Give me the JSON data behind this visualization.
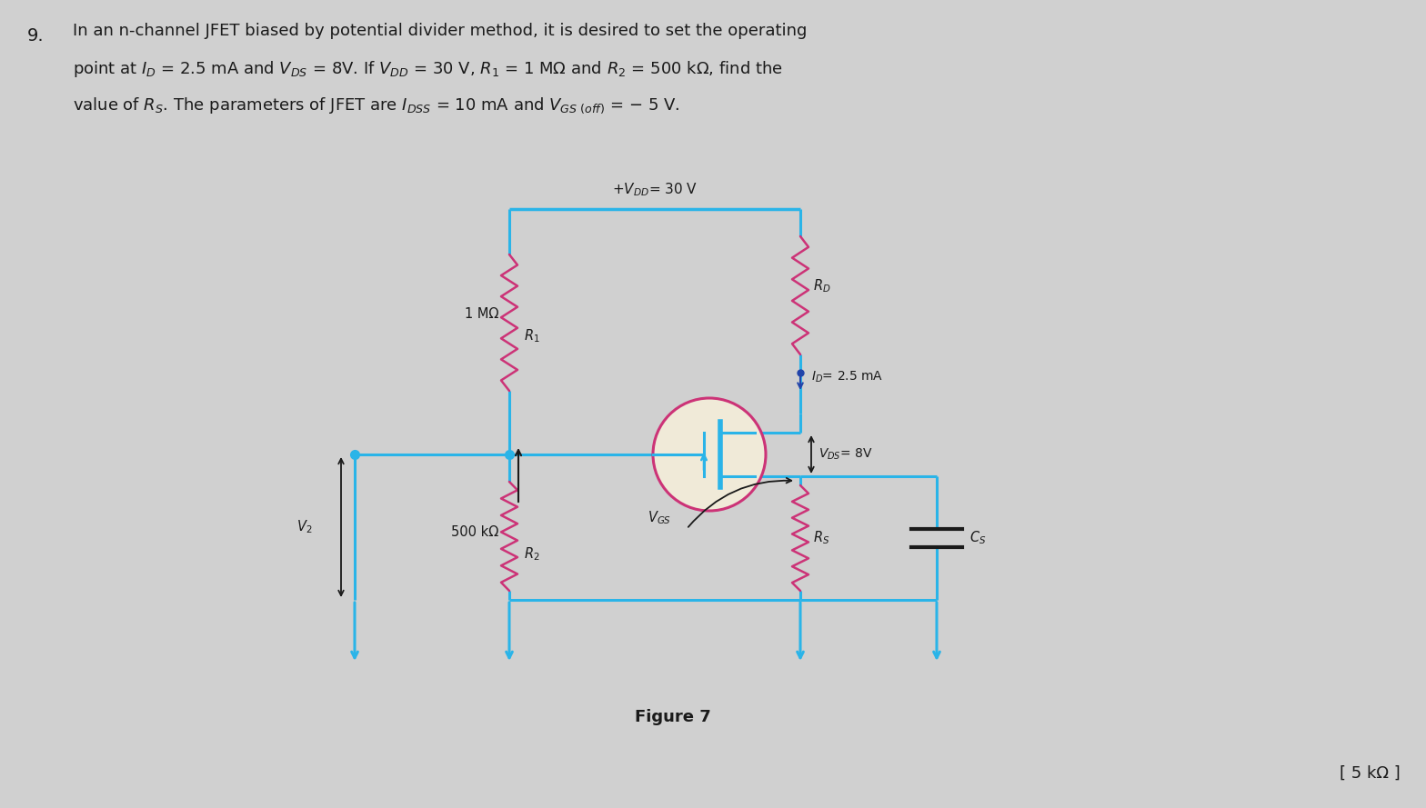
{
  "bg_color": "#d0d0d0",
  "wire_color": "#2ab4e8",
  "resistor_color": "#cc3377",
  "jfet_edge_color": "#cc3377",
  "jfet_fill_color": "#f0ead8",
  "jfet_internal_color": "#2ab4e8",
  "text_color": "#1a1a1a",
  "dot_color": "#2ab4e8",
  "answer_text": "[ 5 kΩ ]",
  "figure_label": "Figure 7",
  "vdd_label": "+$V_{DD}$= 30 V",
  "r1_val": "1 MΩ",
  "r1_name": "$R_1$",
  "r2_val": "500 kΩ",
  "r2_name": "$R_2$",
  "rd_name": "$R_D$",
  "rs_name": "$R_S$",
  "cs_name": "$C_S$",
  "id_label": "$I_D$= 2.5 mA",
  "vds_label": "$V_{DS}$= 8V",
  "vgs_label": "$V_{GS}$",
  "v2_label": "$V_2$",
  "q_line1": "In an n-channel JFET biased by potential divider method, it is desired to set the operating",
  "q_line2": "point at $I_D$ = 2.5 mA and $V_{DS}$ = 8V. If $V_{DD}$ = 30 V, $R_1$ = 1 M$\\Omega$ and $R_2$ = 500 k$\\Omega$, find the",
  "q_line3": "value of $R_S$. The parameters of JFET are $I_{DSS}$ = 10 mA and $V_{GS\\ (off)}$ = − 5 V.",
  "q_num": "9."
}
